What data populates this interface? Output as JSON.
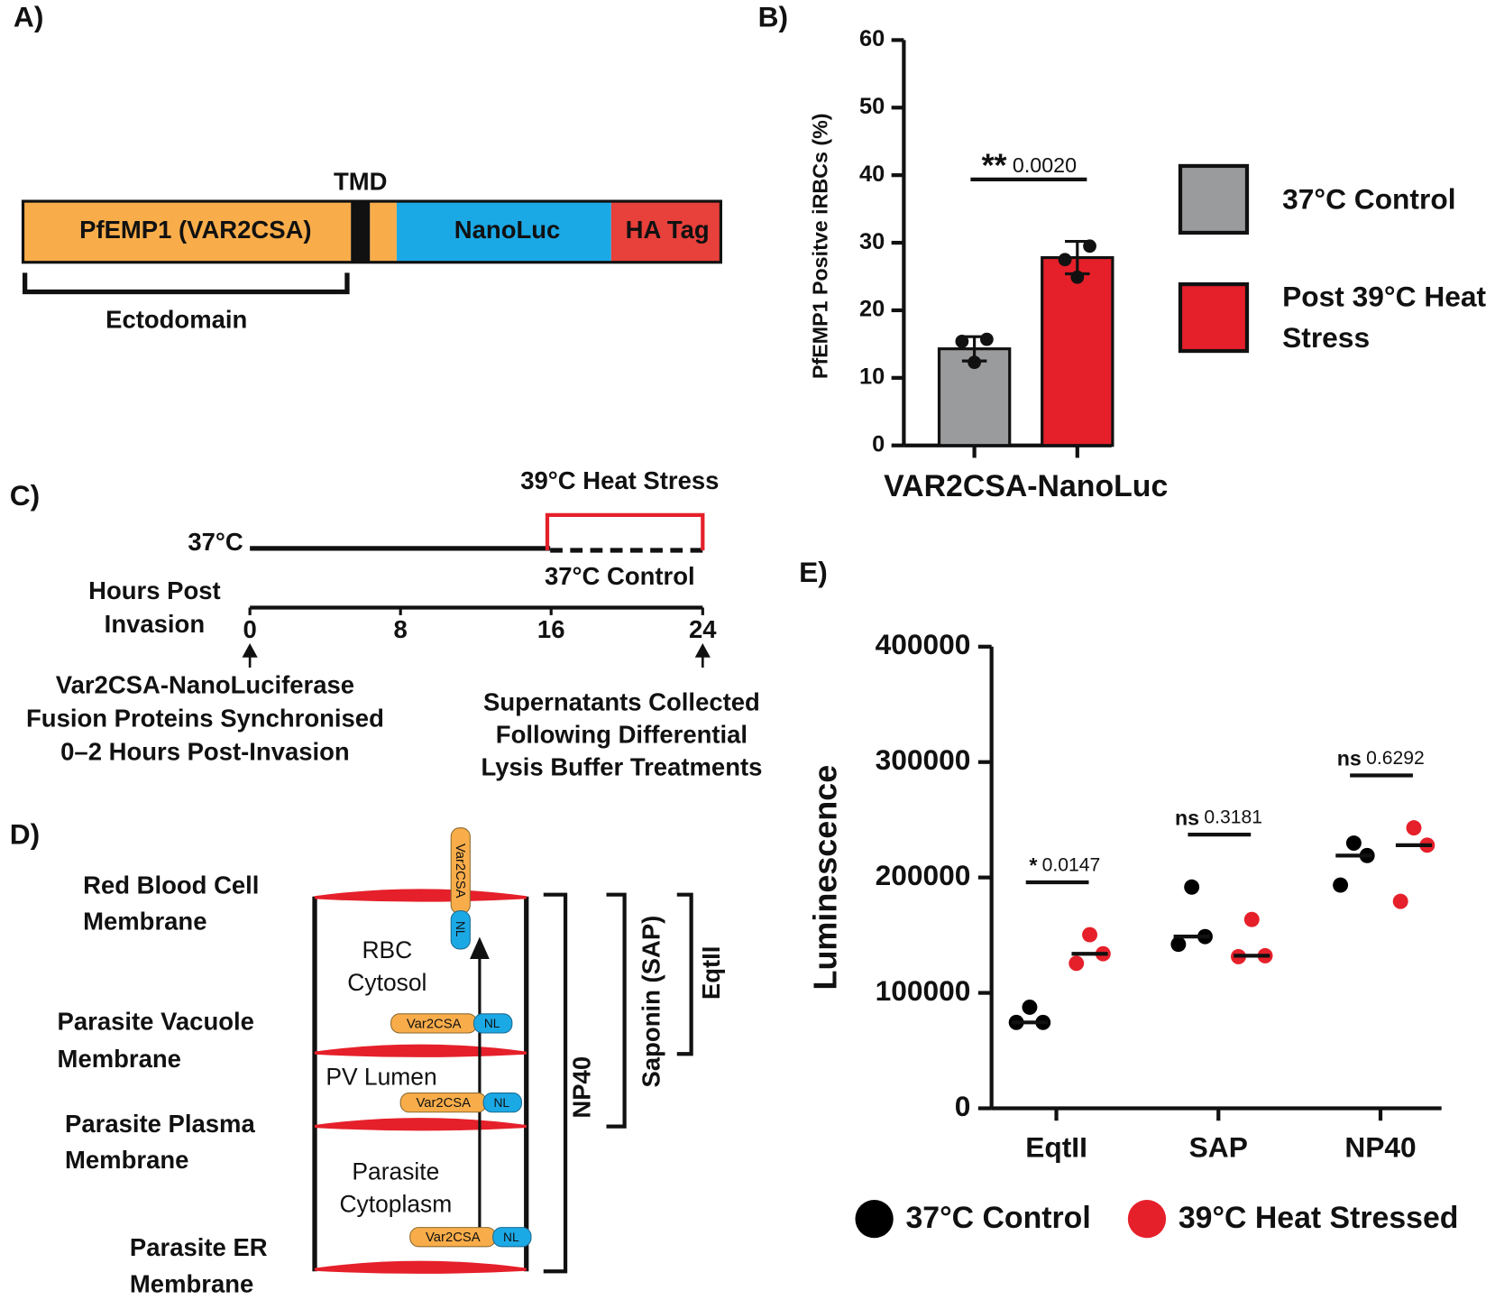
{
  "panel_labels": [
    "A)",
    "B)",
    "C)",
    "D)",
    "E)"
  ],
  "construct": {
    "pfemp1": "PfEMP1 (VAR2CSA)",
    "tmd": "TMD",
    "nanoluc": "NanoLuc",
    "tag": "HA Tag",
    "bracket": "Ectodomain"
  },
  "timeline": {
    "heat": "39°C Heat Stress",
    "baseline": "37°C",
    "control": "37°C Control",
    "axis_label": [
      "Hours Post",
      "Invasion"
    ],
    "hours": [
      0,
      8,
      16,
      24
    ],
    "start_note": [
      "Var2CSA-NanoLuciferase",
      "Fusion Proteins Synchronised",
      "0–2 Hours Post-Invasion"
    ],
    "end_note": [
      "Supernatants Collected",
      "Following Differential",
      "Lysis Buffer Treatments"
    ]
  },
  "lysis": {
    "membranes": [
      [
        "Red Blood Cell",
        "Membrane"
      ],
      [
        "Parasite Vacuole",
        "Membrane"
      ],
      [
        "Parasite Plasma",
        "Membrane"
      ],
      [
        "Parasite ER",
        "Membrane"
      ]
    ],
    "compartments": [
      [
        "RBC",
        "Cytosol"
      ],
      [
        "PV Lumen"
      ],
      [
        "Parasite",
        "Cytoplasm"
      ]
    ],
    "protein": {
      "name": "Var2CSA",
      "tag": "NL"
    },
    "detergents": [
      "NP40",
      "Saponin (SAP)",
      "EqtII"
    ]
  },
  "chart_data": [
    {
      "type": "bar",
      "ylabel": "PfEMP1 Positve iRBCs (%)",
      "xlabel": "VAR2CSA-NanoLuc",
      "ylim": [
        0,
        60
      ],
      "yticks": [
        0,
        10,
        20,
        30,
        40,
        50,
        60
      ],
      "legend": "right",
      "series": [
        {
          "name": "37°C Control",
          "color": "#9a9b9d",
          "values": [
            14.3
          ],
          "errors": [
            1.8
          ],
          "points": [
            15.4,
            15.7,
            12.3
          ]
        },
        {
          "name": "Post 39°C Heat Stress",
          "color": "#e5202a",
          "values": [
            27.8
          ],
          "errors": [
            2.4
          ],
          "points": [
            27.5,
            29.5,
            24.9
          ]
        }
      ],
      "annotation": {
        "stars": "**",
        "p": "0.0020"
      }
    },
    {
      "type": "dot",
      "ylabel": "Luminescence",
      "categories": [
        "EqtII",
        "SAP",
        "NP40"
      ],
      "ylim": [
        0,
        400000
      ],
      "yticks": [
        0,
        100000,
        200000,
        300000,
        400000
      ],
      "legend": "bottom",
      "series": [
        {
          "name": "37°C Control",
          "color": "#000000",
          "values": [
            [
              87600,
              74400,
              74400
            ],
            [
              191700,
              142100,
              148800
            ],
            [
              229800,
              193400,
              219000
            ]
          ],
          "medians": [
            74400,
            148800,
            219000
          ]
        },
        {
          "name": "39°C Heat Stressed",
          "color": "#e5202a",
          "values": [
            [
              150400,
              125600,
              133900
            ],
            [
              163600,
              131400,
              132200
            ],
            [
              243000,
              179300,
              228000
            ]
          ],
          "medians": [
            133900,
            132200,
            228000
          ]
        }
      ],
      "annotations": [
        {
          "stars": "*",
          "p": "0.0147"
        },
        {
          "stars": "ns",
          "p": "0.3181"
        },
        {
          "stars": "ns",
          "p": "0.6292"
        }
      ]
    }
  ]
}
